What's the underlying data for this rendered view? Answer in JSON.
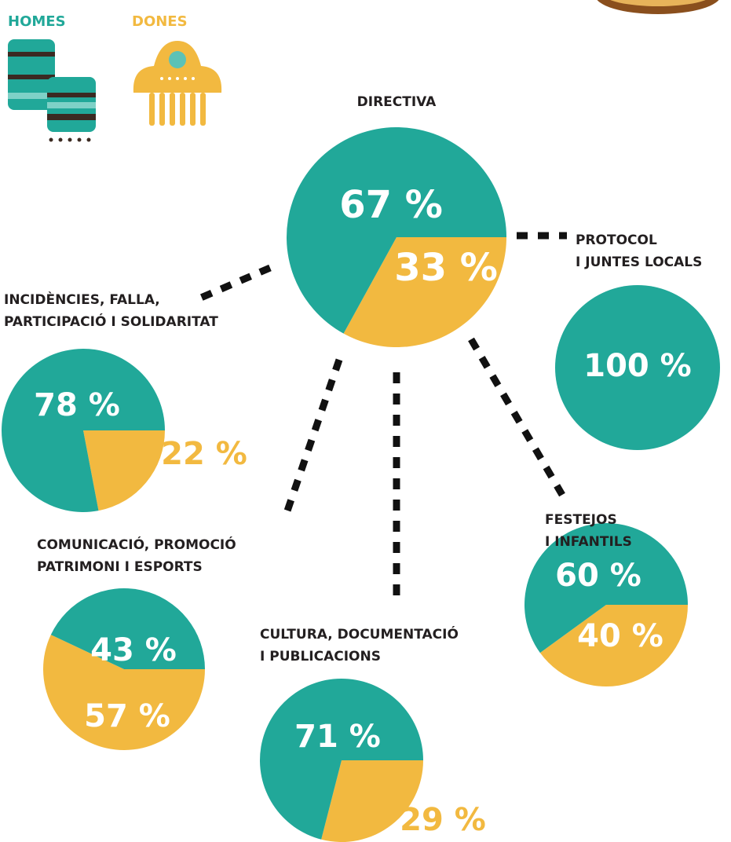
{
  "legend": [
    {
      "name": "HOMES",
      "color": "#21a899"
    },
    {
      "name": "DONES",
      "color": "#f2b940"
    }
  ],
  "chart_data": [
    {
      "type": "pie",
      "title": [
        "DIRECTIVA"
      ],
      "values": [
        67,
        33
      ],
      "value_labels": [
        "67 %",
        "33 %"
      ]
    },
    {
      "type": "pie",
      "title": [
        "PROTOCOL",
        "I JUNTES LOCALS"
      ],
      "values": [
        100
      ],
      "value_labels": [
        "100 %"
      ]
    },
    {
      "type": "pie",
      "title": [
        "INCIDÈNCIES, FALLA,",
        "PARTICIPACIÓ I SOLIDARITAT"
      ],
      "values": [
        78,
        22
      ],
      "value_labels": [
        "78 %",
        "22 %"
      ]
    },
    {
      "type": "pie",
      "title": [
        "COMUNICACIÓ, PROMOCIÓ",
        "PATRIMONI I ESPORTS"
      ],
      "values": [
        43,
        57
      ],
      "value_labels": [
        "43 %",
        "57 %"
      ]
    },
    {
      "type": "pie",
      "title": [
        "CULTURA, DOCUMENTACIÓ",
        "I PUBLICACIONS"
      ],
      "values": [
        71,
        29
      ],
      "value_labels": [
        "71 %",
        "29 %"
      ]
    },
    {
      "type": "pie",
      "title": [
        "FESTEJOS",
        "I INFANTILS"
      ],
      "values": [
        60,
        40
      ],
      "value_labels": [
        "60 %",
        "40 %"
      ]
    }
  ]
}
